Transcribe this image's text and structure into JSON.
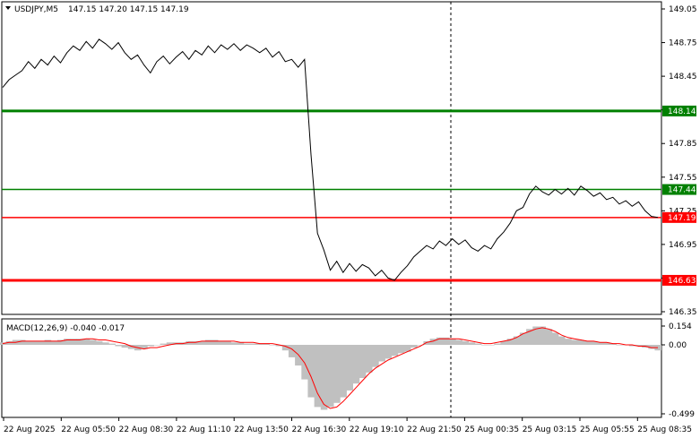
{
  "header": {
    "symbol": "USDJPY,M5",
    "ohlc": "147.15 147.20 147.15 147.19"
  },
  "price_axis": {
    "ticks": [
      "149.05",
      "148.75",
      "148.45",
      "148.15",
      "147.85",
      "147.55",
      "147.25",
      "146.95",
      "146.65",
      "146.35"
    ],
    "tick_values": [
      149.05,
      148.75,
      148.45,
      148.15,
      147.85,
      147.55,
      147.25,
      146.95,
      146.65,
      146.35
    ],
    "range": [
      146.35,
      149.05
    ]
  },
  "levels": [
    {
      "label": "148.14",
      "value": 148.14,
      "color": "#008000",
      "thick": true
    },
    {
      "label": "147.44",
      "value": 147.44,
      "color": "#008000",
      "thick": false
    },
    {
      "label": "147.19",
      "value": 147.19,
      "color": "#ff0000",
      "thick": false
    },
    {
      "label": "146.63",
      "value": 146.63,
      "color": "#ff0000",
      "thick": true
    }
  ],
  "macd": {
    "title": "MACD(12,26,9) -0.040 -0.017",
    "ticks": [
      "0.154",
      "0.00",
      "-0.499"
    ],
    "tick_values": [
      0.154,
      0.0,
      -0.499
    ],
    "range": [
      -0.499,
      0.154
    ]
  },
  "time_axis": {
    "labels": [
      "22 Aug 2025",
      "22 Aug 05:50",
      "22 Aug 08:30",
      "22 Aug 11:10",
      "22 Aug 13:50",
      "22 Aug 16:30",
      "22 Aug 19:10",
      "22 Aug 21:50",
      "25 Aug 00:35",
      "25 Aug 03:15",
      "25 Aug 05:55",
      "25 Aug 08:35"
    ]
  },
  "chart_data": {
    "type": "line",
    "symbol": "USDJPY,M5",
    "price_series": [
      148.35,
      148.42,
      148.46,
      148.5,
      148.58,
      148.52,
      148.6,
      148.55,
      148.63,
      148.57,
      148.66,
      148.72,
      148.68,
      148.76,
      148.7,
      148.78,
      148.74,
      148.69,
      148.75,
      148.66,
      148.6,
      148.64,
      148.55,
      148.48,
      148.58,
      148.63,
      148.56,
      148.62,
      148.67,
      148.6,
      148.68,
      148.64,
      148.72,
      148.66,
      148.73,
      148.69,
      148.74,
      148.68,
      148.73,
      148.7,
      148.66,
      148.7,
      148.62,
      148.67,
      148.58,
      148.6,
      148.53,
      148.6,
      147.75,
      147.05,
      146.9,
      146.72,
      146.8,
      146.7,
      146.78,
      146.71,
      146.77,
      146.74,
      146.67,
      146.72,
      146.65,
      146.63,
      146.7,
      146.76,
      146.84,
      146.89,
      146.94,
      146.91,
      146.98,
      146.94,
      147.0,
      146.95,
      146.99,
      146.92,
      146.89,
      146.94,
      146.91,
      147.0,
      147.06,
      147.14,
      147.25,
      147.28,
      147.4,
      147.47,
      147.42,
      147.39,
      147.44,
      147.4,
      147.45,
      147.39,
      147.47,
      147.43,
      147.38,
      147.41,
      147.35,
      147.37,
      147.31,
      147.34,
      147.29,
      147.33,
      147.25,
      147.2,
      147.19
    ],
    "price_ylim": [
      146.35,
      149.05
    ],
    "macd_histogram": [
      0.02,
      0.03,
      0.04,
      0.04,
      0.03,
      0.03,
      0.03,
      0.04,
      0.03,
      0.04,
      0.05,
      0.05,
      0.05,
      0.05,
      0.04,
      0.03,
      0.02,
      0.01,
      -0.01,
      -0.02,
      -0.03,
      -0.04,
      -0.03,
      -0.01,
      0.0,
      0.01,
      0.02,
      0.02,
      0.02,
      0.03,
      0.03,
      0.03,
      0.04,
      0.04,
      0.03,
      0.03,
      0.02,
      0.02,
      0.01,
      0.01,
      0.01,
      0.01,
      0.0,
      -0.01,
      -0.04,
      -0.09,
      -0.15,
      -0.25,
      -0.38,
      -0.45,
      -0.47,
      -0.45,
      -0.42,
      -0.38,
      -0.33,
      -0.28,
      -0.24,
      -0.2,
      -0.16,
      -0.12,
      -0.1,
      -0.08,
      -0.06,
      -0.05,
      -0.02,
      0.0,
      0.03,
      0.05,
      0.06,
      0.06,
      0.05,
      0.04,
      0.03,
      0.02,
      0.01,
      0.0,
      0.0,
      0.01,
      0.03,
      0.05,
      0.07,
      0.1,
      0.13,
      0.15,
      0.15,
      0.13,
      0.1,
      0.07,
      0.05,
      0.04,
      0.04,
      0.03,
      0.03,
      0.02,
      0.02,
      0.01,
      0.0,
      0.0,
      -0.01,
      -0.01,
      -0.02,
      -0.03,
      -0.04
    ],
    "macd_signal": [
      0.01,
      0.02,
      0.02,
      0.03,
      0.03,
      0.03,
      0.03,
      0.03,
      0.03,
      0.03,
      0.04,
      0.04,
      0.04,
      0.05,
      0.05,
      0.04,
      0.04,
      0.03,
      0.02,
      0.01,
      -0.01,
      -0.02,
      -0.03,
      -0.02,
      -0.02,
      -0.01,
      0.0,
      0.01,
      0.01,
      0.02,
      0.02,
      0.03,
      0.03,
      0.03,
      0.03,
      0.03,
      0.03,
      0.02,
      0.02,
      0.02,
      0.01,
      0.01,
      0.01,
      0.0,
      -0.01,
      -0.03,
      -0.07,
      -0.13,
      -0.23,
      -0.35,
      -0.43,
      -0.46,
      -0.45,
      -0.41,
      -0.36,
      -0.31,
      -0.26,
      -0.21,
      -0.17,
      -0.14,
      -0.11,
      -0.09,
      -0.07,
      -0.05,
      -0.03,
      -0.01,
      0.02,
      0.03,
      0.05,
      0.05,
      0.05,
      0.05,
      0.04,
      0.03,
      0.02,
      0.01,
      0.01,
      0.02,
      0.03,
      0.04,
      0.06,
      0.09,
      0.11,
      0.13,
      0.14,
      0.13,
      0.11,
      0.08,
      0.06,
      0.05,
      0.04,
      0.03,
      0.03,
      0.02,
      0.02,
      0.01,
      0.01,
      0.0,
      0.0,
      -0.01,
      -0.01,
      -0.02,
      -0.02
    ],
    "macd_ylim": [
      -0.499,
      0.154
    ]
  }
}
